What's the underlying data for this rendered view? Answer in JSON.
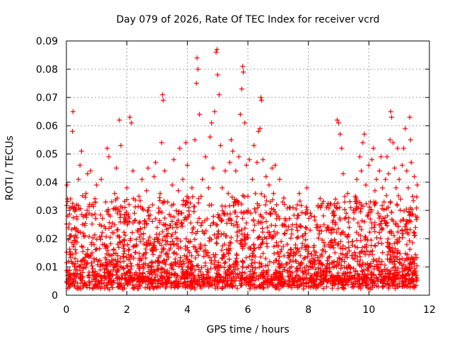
{
  "chart_data": {
    "type": "scatter",
    "title": "Day 079 of 2026, Rate Of TEC Index for receiver vcrd",
    "xlabel": "GPS time / hours",
    "ylabel": "ROTI / TECUs",
    "xlim": [
      0,
      12
    ],
    "ylim": [
      0,
      0.09
    ],
    "x_ticks": [
      0,
      2,
      4,
      6,
      8,
      10,
      12
    ],
    "x_tick_labels": [
      "0",
      "2",
      "4",
      "6",
      "8",
      "10",
      "12"
    ],
    "y_ticks": [
      0,
      0.01,
      0.02,
      0.03,
      0.04,
      0.05,
      0.06,
      0.07,
      0.08,
      0.09
    ],
    "y_tick_labels": [
      "0",
      "0.01",
      "0.02",
      "0.03",
      "0.04",
      "0.05",
      "0.06",
      "0.07",
      "0.08",
      "0.09"
    ],
    "grid": true,
    "marker": "+",
    "marker_color": "#ff0000",
    "series": [
      {
        "name": "ROTI",
        "points": [
          [
            0.02,
            0.039
          ],
          [
            0.05,
            0.028
          ],
          [
            0.08,
            0.012
          ],
          [
            0.1,
            0.021
          ],
          [
            0.12,
            0.006
          ],
          [
            0.15,
            0.031
          ],
          [
            0.2,
            0.058
          ],
          [
            0.22,
            0.065
          ],
          [
            0.25,
            0.018
          ],
          [
            0.3,
            0.009
          ],
          [
            0.35,
            0.027
          ],
          [
            0.4,
            0.041
          ],
          [
            0.45,
            0.046
          ],
          [
            0.5,
            0.051
          ],
          [
            0.55,
            0.022
          ],
          [
            0.6,
            0.011
          ],
          [
            0.65,
            0.036
          ],
          [
            0.7,
            0.043
          ],
          [
            0.75,
            0.029
          ],
          [
            0.8,
            0.044
          ],
          [
            0.85,
            0.015
          ],
          [
            0.9,
            0.008
          ],
          [
            0.95,
            0.033
          ],
          [
            1.0,
            0.039
          ],
          [
            1.05,
            0.012
          ],
          [
            1.1,
            0.025
          ],
          [
            1.15,
            0.041
          ],
          [
            1.2,
            0.018
          ],
          [
            1.25,
            0.007
          ],
          [
            1.3,
            0.033
          ],
          [
            1.35,
            0.052
          ],
          [
            1.4,
            0.049
          ],
          [
            1.45,
            0.028
          ],
          [
            1.5,
            0.014
          ],
          [
            1.55,
            0.009
          ],
          [
            1.6,
            0.036
          ],
          [
            1.65,
            0.045
          ],
          [
            1.7,
            0.021
          ],
          [
            1.75,
            0.062
          ],
          [
            1.8,
            0.053
          ],
          [
            1.85,
            0.031
          ],
          [
            1.9,
            0.012
          ],
          [
            1.95,
            0.027
          ],
          [
            2.0,
            0.038
          ],
          [
            2.05,
            0.016
          ],
          [
            2.1,
            0.063
          ],
          [
            2.15,
            0.061
          ],
          [
            2.2,
            0.044
          ],
          [
            2.25,
            0.029
          ],
          [
            2.3,
            0.008
          ],
          [
            2.35,
            0.023
          ],
          [
            2.4,
            0.035
          ],
          [
            2.45,
            0.019
          ],
          [
            2.5,
            0.041
          ],
          [
            2.55,
            0.011
          ],
          [
            2.6,
            0.026
          ],
          [
            2.65,
            0.037
          ],
          [
            2.7,
            0.045
          ],
          [
            2.75,
            0.018
          ],
          [
            2.8,
            0.009
          ],
          [
            2.85,
            0.032
          ],
          [
            2.9,
            0.042
          ],
          [
            2.95,
            0.047
          ],
          [
            3.0,
            0.024
          ],
          [
            3.05,
            0.012
          ],
          [
            3.1,
            0.036
          ],
          [
            3.15,
            0.054
          ],
          [
            3.18,
            0.071
          ],
          [
            3.2,
            0.069
          ],
          [
            3.25,
            0.044
          ],
          [
            3.3,
            0.021
          ],
          [
            3.35,
            0.033
          ],
          [
            3.4,
            0.016
          ],
          [
            3.45,
            0.028
          ],
          [
            3.5,
            0.039
          ],
          [
            3.55,
            0.048
          ],
          [
            3.6,
            0.011
          ],
          [
            3.65,
            0.025
          ],
          [
            3.7,
            0.037
          ],
          [
            3.75,
            0.052
          ],
          [
            3.8,
            0.029
          ],
          [
            3.85,
            0.041
          ],
          [
            3.9,
            0.014
          ],
          [
            3.95,
            0.054
          ],
          [
            4.0,
            0.046
          ],
          [
            4.05,
            0.031
          ],
          [
            4.1,
            0.019
          ],
          [
            4.15,
            0.038
          ],
          [
            4.2,
            0.024
          ],
          [
            4.25,
            0.055
          ],
          [
            4.3,
            0.075
          ],
          [
            4.32,
            0.084
          ],
          [
            4.35,
            0.08
          ],
          [
            4.4,
            0.064
          ],
          [
            4.45,
            0.035
          ],
          [
            4.5,
            0.041
          ],
          [
            4.55,
            0.022
          ],
          [
            4.6,
            0.049
          ],
          [
            4.65,
            0.027
          ],
          [
            4.7,
            0.038
          ],
          [
            4.75,
            0.056
          ],
          [
            4.8,
            0.061
          ],
          [
            4.85,
            0.045
          ],
          [
            4.9,
            0.065
          ],
          [
            4.95,
            0.086
          ],
          [
            4.98,
            0.087
          ],
          [
            5.0,
            0.078
          ],
          [
            5.05,
            0.071
          ],
          [
            5.1,
            0.053
          ],
          [
            5.15,
            0.038
          ],
          [
            5.2,
            0.029
          ],
          [
            5.25,
            0.044
          ],
          [
            5.3,
            0.021
          ],
          [
            5.35,
            0.036
          ],
          [
            5.4,
            0.047
          ],
          [
            5.45,
            0.055
          ],
          [
            5.5,
            0.051
          ],
          [
            5.55,
            0.033
          ],
          [
            5.6,
            0.044
          ],
          [
            5.65,
            0.025
          ],
          [
            5.7,
            0.049
          ],
          [
            5.75,
            0.064
          ],
          [
            5.8,
            0.073
          ],
          [
            5.83,
            0.081
          ],
          [
            5.85,
            0.079
          ],
          [
            5.9,
            0.061
          ],
          [
            5.95,
            0.046
          ],
          [
            6.0,
            0.035
          ],
          [
            6.05,
            0.048
          ],
          [
            6.1,
            0.029
          ],
          [
            6.15,
            0.041
          ],
          [
            6.2,
            0.053
          ],
          [
            6.25,
            0.036
          ],
          [
            6.3,
            0.047
          ],
          [
            6.35,
            0.058
          ],
          [
            6.4,
            0.059
          ],
          [
            6.43,
            0.07
          ],
          [
            6.45,
            0.069
          ],
          [
            6.5,
            0.048
          ],
          [
            6.55,
            0.035
          ],
          [
            6.6,
            0.042
          ],
          [
            6.65,
            0.024
          ],
          [
            6.7,
            0.039
          ],
          [
            6.75,
            0.029
          ],
          [
            6.8,
            0.045
          ],
          [
            6.85,
            0.036
          ],
          [
            6.9,
            0.046
          ],
          [
            6.95,
            0.032
          ],
          [
            7.0,
            0.028
          ],
          [
            7.05,
            0.041
          ],
          [
            7.1,
            0.019
          ],
          [
            7.15,
            0.033
          ],
          [
            7.2,
            0.025
          ],
          [
            7.3,
            0.018
          ],
          [
            7.4,
            0.031
          ],
          [
            7.5,
            0.014
          ],
          [
            7.6,
            0.025
          ],
          [
            7.7,
            0.036
          ],
          [
            7.8,
            0.021
          ],
          [
            7.9,
            0.029
          ],
          [
            7.95,
            0.038
          ],
          [
            8.0,
            0.017
          ],
          [
            8.1,
            0.028
          ],
          [
            8.2,
            0.012
          ],
          [
            8.3,
            0.024
          ],
          [
            8.4,
            0.031
          ],
          [
            8.5,
            0.016
          ],
          [
            8.6,
            0.023
          ],
          [
            8.7,
            0.011
          ],
          [
            8.8,
            0.029
          ],
          [
            8.9,
            0.034
          ],
          [
            8.95,
            0.062
          ],
          [
            9.0,
            0.061
          ],
          [
            9.05,
            0.057
          ],
          [
            9.1,
            0.052
          ],
          [
            9.15,
            0.043
          ],
          [
            9.2,
            0.033
          ],
          [
            9.25,
            0.029
          ],
          [
            9.3,
            0.036
          ],
          [
            9.35,
            0.024
          ],
          [
            9.4,
            0.031
          ],
          [
            9.45,
            0.019
          ],
          [
            9.5,
            0.027
          ],
          [
            9.55,
            0.035
          ],
          [
            9.6,
            0.041
          ],
          [
            9.65,
            0.031
          ],
          [
            9.7,
            0.049
          ],
          [
            9.75,
            0.044
          ],
          [
            9.8,
            0.054
          ],
          [
            9.85,
            0.057
          ],
          [
            9.9,
            0.039
          ],
          [
            9.95,
            0.028
          ],
          [
            10.0,
            0.046
          ],
          [
            10.05,
            0.033
          ],
          [
            10.1,
            0.048
          ],
          [
            10.15,
            0.052
          ],
          [
            10.2,
            0.037
          ],
          [
            10.25,
            0.041
          ],
          [
            10.3,
            0.029
          ],
          [
            10.35,
            0.044
          ],
          [
            10.4,
            0.049
          ],
          [
            10.45,
            0.038
          ],
          [
            10.5,
            0.033
          ],
          [
            10.55,
            0.041
          ],
          [
            10.6,
            0.049
          ],
          [
            10.65,
            0.043
          ],
          [
            10.7,
            0.055
          ],
          [
            10.72,
            0.065
          ],
          [
            10.75,
            0.063
          ],
          [
            10.8,
            0.054
          ],
          [
            10.85,
            0.045
          ],
          [
            10.9,
            0.038
          ],
          [
            10.95,
            0.052
          ],
          [
            11.0,
            0.041
          ],
          [
            11.05,
            0.034
          ],
          [
            11.1,
            0.046
          ],
          [
            11.15,
            0.052
          ],
          [
            11.2,
            0.059
          ],
          [
            11.25,
            0.044
          ],
          [
            11.3,
            0.038
          ],
          [
            11.35,
            0.063
          ],
          [
            11.38,
            0.055
          ],
          [
            11.4,
            0.047
          ],
          [
            11.45,
            0.035
          ],
          [
            11.5,
            0.042
          ],
          [
            11.55,
            0.028
          ],
          [
            11.6,
            0.039
          ]
        ]
      }
    ]
  }
}
